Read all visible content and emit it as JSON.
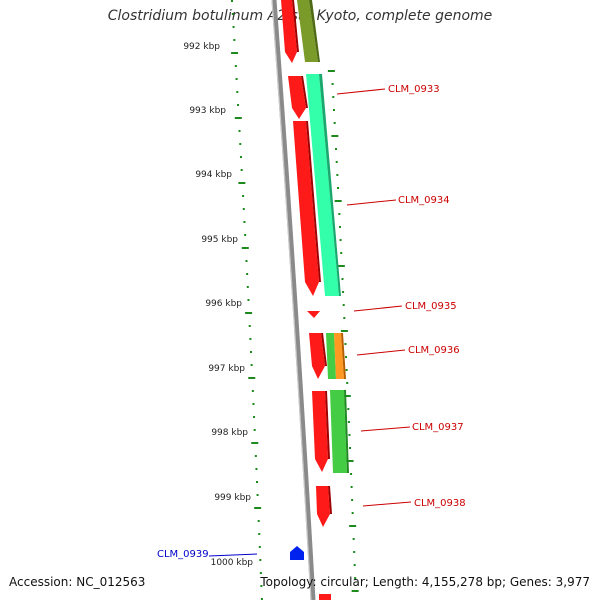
{
  "title": "Clostridium botulinum A2 str. Kyoto, complete genome",
  "footer": {
    "accession": "Accession: NC_012563",
    "stats": "Topology: circular; Length: 4,155,278 bp; Genes: 3,977"
  },
  "colors": {
    "backbone": "#8a8a8a",
    "ruler": "#1d8a1d",
    "gene_red": "#ff1a1a",
    "gene_label_red": "#cc0000",
    "gene_label_blue": "#0000cc",
    "olive": "#7a9a2a",
    "aqua": "#33ffaa",
    "green": "#44cc44",
    "orange": "#ff9922",
    "blue_marker": "#0022ee"
  },
  "ruler_labels": [
    "992 kbp",
    "993 kbp",
    "994 kbp",
    "995 kbp",
    "996 kbp",
    "997 kbp",
    "998 kbp",
    "999 kbp",
    "1000 kbp"
  ],
  "genes": [
    {
      "id": "CLM_0933",
      "label_color": "red"
    },
    {
      "id": "CLM_0934",
      "label_color": "red"
    },
    {
      "id": "CLM_0935",
      "label_color": "red"
    },
    {
      "id": "CLM_0936",
      "label_color": "red"
    },
    {
      "id": "CLM_0937",
      "label_color": "red"
    },
    {
      "id": "CLM_0938",
      "label_color": "red"
    },
    {
      "id": "CLM_0939",
      "label_color": "blue"
    }
  ]
}
